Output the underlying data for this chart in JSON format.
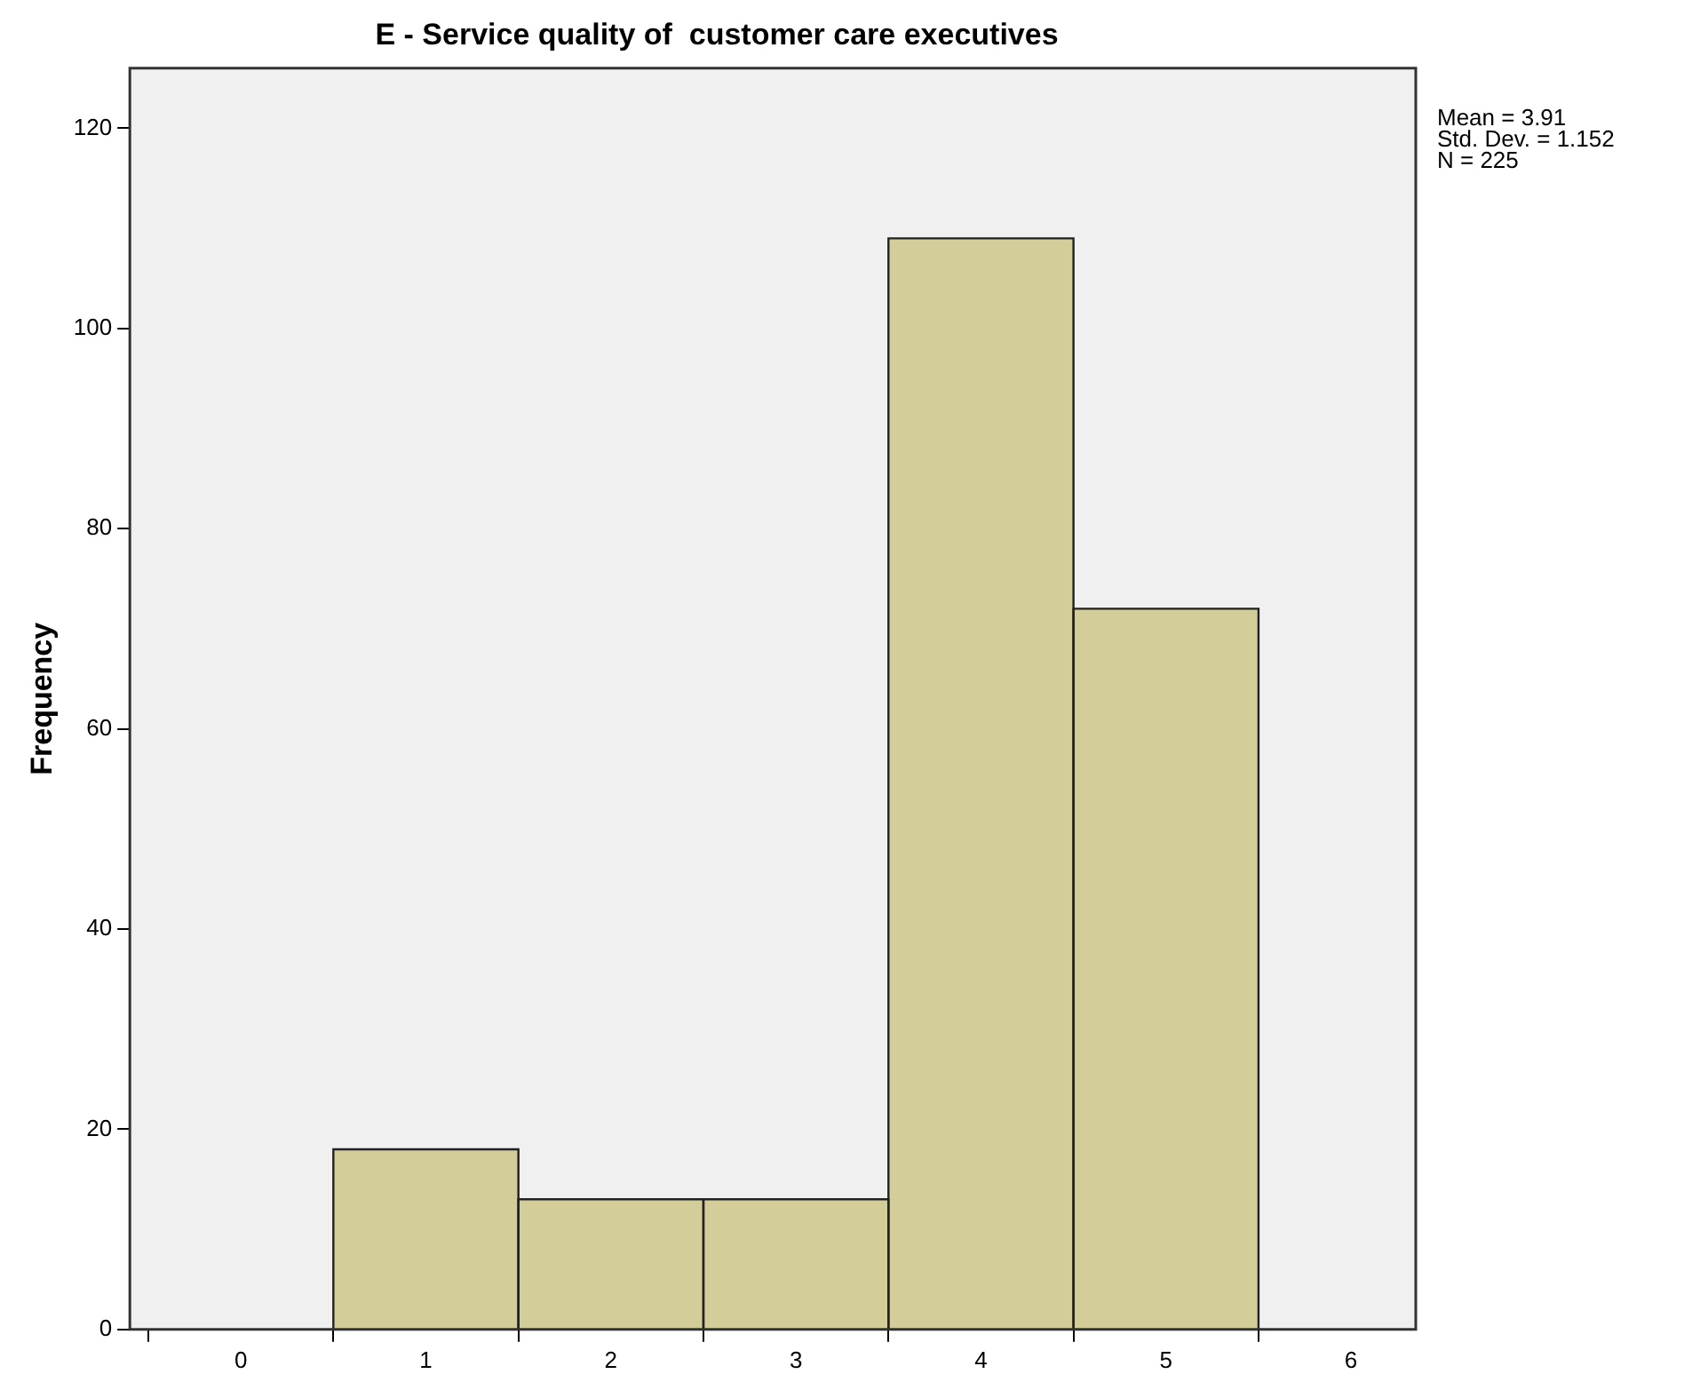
{
  "chart_data": {
    "type": "histogram",
    "title": "E - Service quality of  customer care executives",
    "ylabel": "Frequency",
    "bins": [
      0.5,
      1.5,
      2.5,
      3.5,
      4.5,
      5.5
    ],
    "values": [
      18,
      13,
      13,
      109,
      72
    ],
    "color": "#d3ce99",
    "xlim": [
      -0.6,
      6.35
    ],
    "xticks": [
      0,
      1,
      2,
      3,
      4,
      5,
      6
    ],
    "ylim": [
      0,
      126
    ],
    "yticks": [
      0,
      20,
      40,
      60,
      80,
      100,
      120
    ],
    "grid": false,
    "legend": false,
    "annotations": [
      "Mean = 3.91",
      "Std. Dev. = 1.152",
      "N = 225"
    ]
  }
}
